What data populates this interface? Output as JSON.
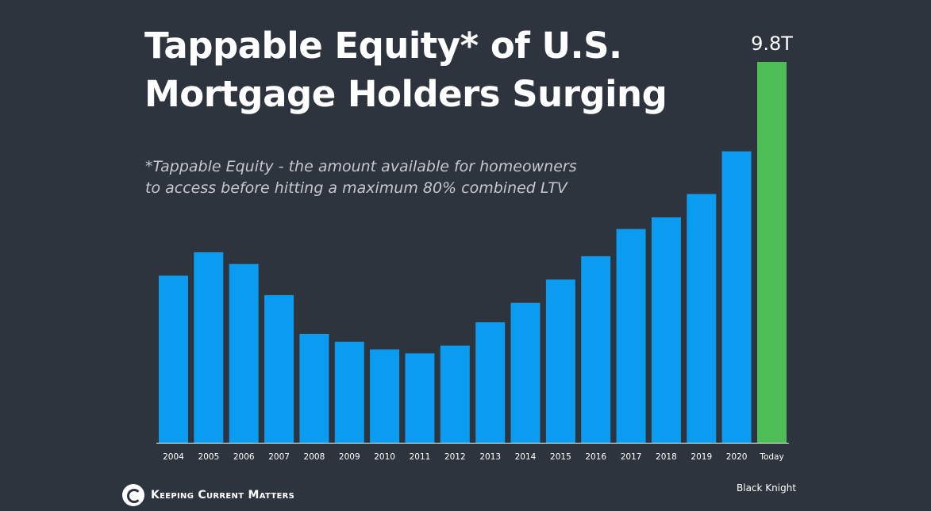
{
  "title_lines": [
    "Tappable Equity* of U.S.",
    "Mortgage Holders Surging"
  ],
  "subtitle_lines": [
    "*Tappable Equity - the amount available for homeowners",
    "to access before hitting a maximum 80% combined LTV"
  ],
  "footer": {
    "logo_text": "Keeping Current Matters",
    "source": "Black Knight"
  },
  "colors": {
    "background": "#2e343d",
    "bar": "#0a9cf0",
    "highlight_bar": "#4cbe55",
    "axis": "#ffffff"
  },
  "chart_data": {
    "type": "bar",
    "categories": [
      "2004",
      "2005",
      "2006",
      "2007",
      "2008",
      "2009",
      "2010",
      "2011",
      "2012",
      "2013",
      "2014",
      "2015",
      "2016",
      "2017",
      "2018",
      "2019",
      "2020",
      "Today"
    ],
    "values": [
      4.3,
      4.9,
      4.6,
      3.8,
      2.8,
      2.6,
      2.4,
      2.3,
      2.5,
      3.1,
      3.6,
      4.2,
      4.8,
      5.5,
      5.8,
      6.4,
      7.5,
      9.8
    ],
    "highlight_index": 17,
    "data_labels": {
      "17": "9.8T"
    },
    "ylim": [
      0,
      10
    ],
    "xlabel": "",
    "ylabel": "",
    "grid": false,
    "legend": "none"
  }
}
